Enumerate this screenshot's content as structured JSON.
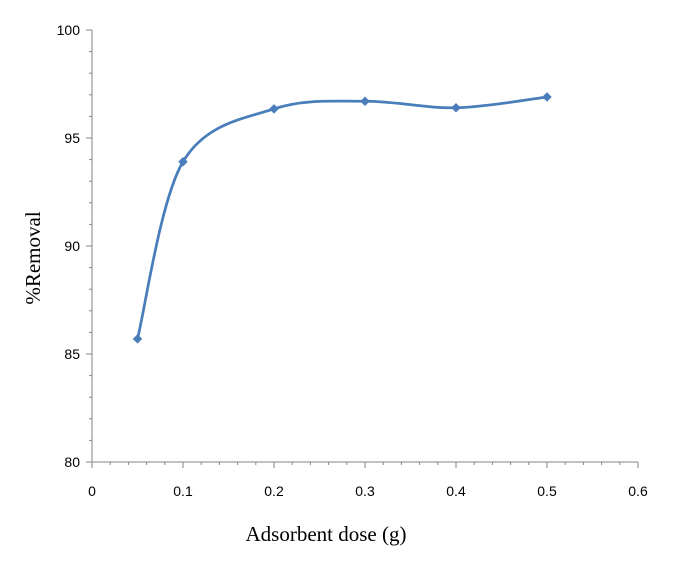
{
  "chart_data": {
    "type": "line",
    "title": "",
    "xlabel": "Adsorbent dose (g)",
    "ylabel": "%Removal",
    "xlim": [
      0,
      0.6
    ],
    "ylim": [
      80,
      100
    ],
    "x_ticks": [
      "0",
      "0.1",
      "0.2",
      "0.3",
      "0.4",
      "0.5",
      "0.6"
    ],
    "y_ticks": [
      "80",
      "85",
      "90",
      "95",
      "100"
    ],
    "grid": false,
    "legend": "none",
    "smooth": true,
    "marker": "diamond",
    "series": [
      {
        "color": "#4a7ebb",
        "points": [
          {
            "x": 0.05,
            "y": 85.7
          },
          {
            "x": 0.1,
            "y": 93.9
          },
          {
            "x": 0.2,
            "y": 96.35
          },
          {
            "x": 0.3,
            "y": 96.7
          },
          {
            "x": 0.4,
            "y": 96.4
          },
          {
            "x": 0.5,
            "y": 96.9
          }
        ]
      }
    ]
  }
}
